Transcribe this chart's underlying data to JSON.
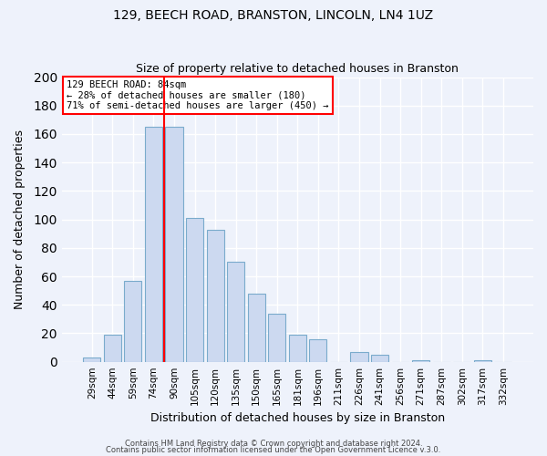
{
  "title": "129, BEECH ROAD, BRANSTON, LINCOLN, LN4 1UZ",
  "subtitle": "Size of property relative to detached houses in Branston",
  "xlabel": "Distribution of detached houses by size in Branston",
  "ylabel": "Number of detached properties",
  "bar_color": "#ccd9f0",
  "bar_edge_color": "#7aabcc",
  "categories": [
    "29sqm",
    "44sqm",
    "59sqm",
    "74sqm",
    "90sqm",
    "105sqm",
    "120sqm",
    "135sqm",
    "150sqm",
    "165sqm",
    "181sqm",
    "196sqm",
    "211sqm",
    "226sqm",
    "241sqm",
    "256sqm",
    "271sqm",
    "287sqm",
    "302sqm",
    "317sqm",
    "332sqm"
  ],
  "values": [
    3,
    19,
    57,
    165,
    165,
    101,
    93,
    70,
    48,
    34,
    19,
    16,
    0,
    7,
    5,
    0,
    1,
    0,
    0,
    1,
    0
  ],
  "red_line_index": 3.5,
  "annotation_lines": [
    "129 BEECH ROAD: 84sqm",
    "← 28% of detached houses are smaller (180)",
    "71% of semi-detached houses are larger (450) →"
  ],
  "ylim": [
    0,
    200
  ],
  "yticks": [
    0,
    20,
    40,
    60,
    80,
    100,
    120,
    140,
    160,
    180,
    200
  ],
  "background_color": "#eef2fb",
  "grid_color": "#ffffff",
  "footer_lines": [
    "Contains HM Land Registry data © Crown copyright and database right 2024.",
    "Contains public sector information licensed under the Open Government Licence v.3.0."
  ]
}
